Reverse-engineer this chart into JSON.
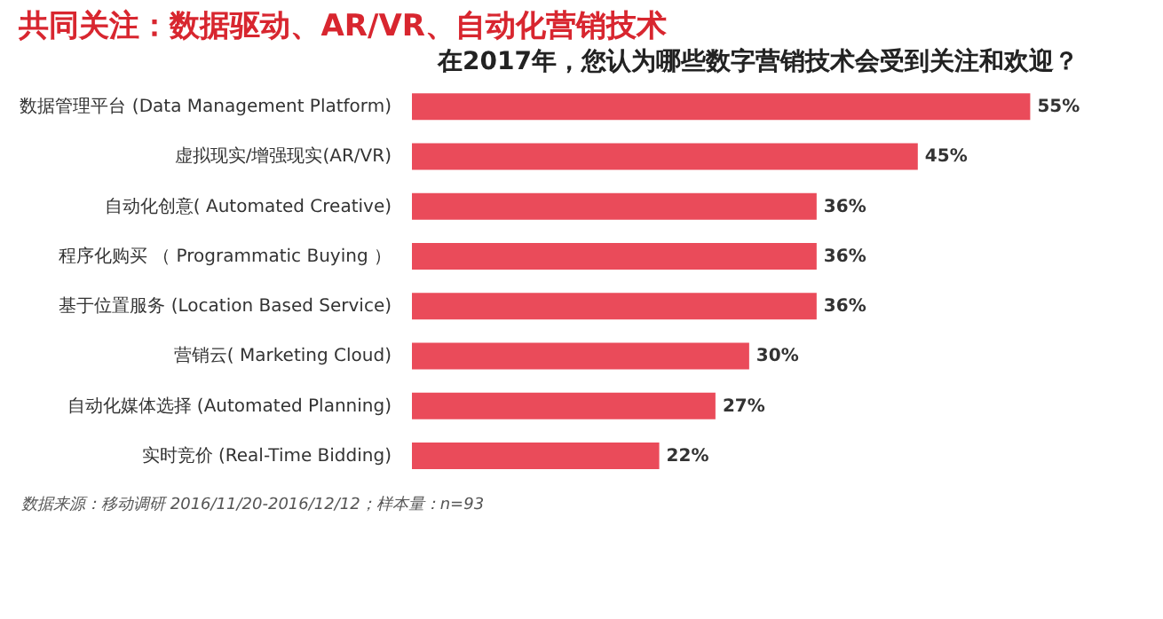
{
  "chart_data": {
    "type": "bar",
    "orientation": "horizontal",
    "title": "共同关注：数据驱动、AR/VR、自动化营销技术",
    "subtitle": "在2017年，您认为哪些数字营销技术会受到关注和欢迎？",
    "categories": [
      "数据管理平台 (Data Management Platform)",
      "虚拟现实/增强现实(AR/VR)",
      "自动化创意( Automated Creative)",
      "程序化购买 （ Programmatic Buying ）",
      "基于位置服务 (Location Based Service)",
      "营销云( Marketing Cloud)",
      "自动化媒体选择 (Automated Planning)",
      "实时竞价 (Real-Time Bidding)"
    ],
    "values": [
      55,
      45,
      36,
      36,
      36,
      30,
      27,
      22
    ],
    "color": "#ea4b5a",
    "data_labels": true,
    "value_labels": [
      "55%",
      "45%",
      "36%",
      "36%",
      "36%",
      "30%",
      "27%",
      "22%"
    ],
    "grid": false,
    "annotations": [
      "数据来源：移动调研 2016/11/20-2016/12/12；样本量：n=93"
    ]
  }
}
